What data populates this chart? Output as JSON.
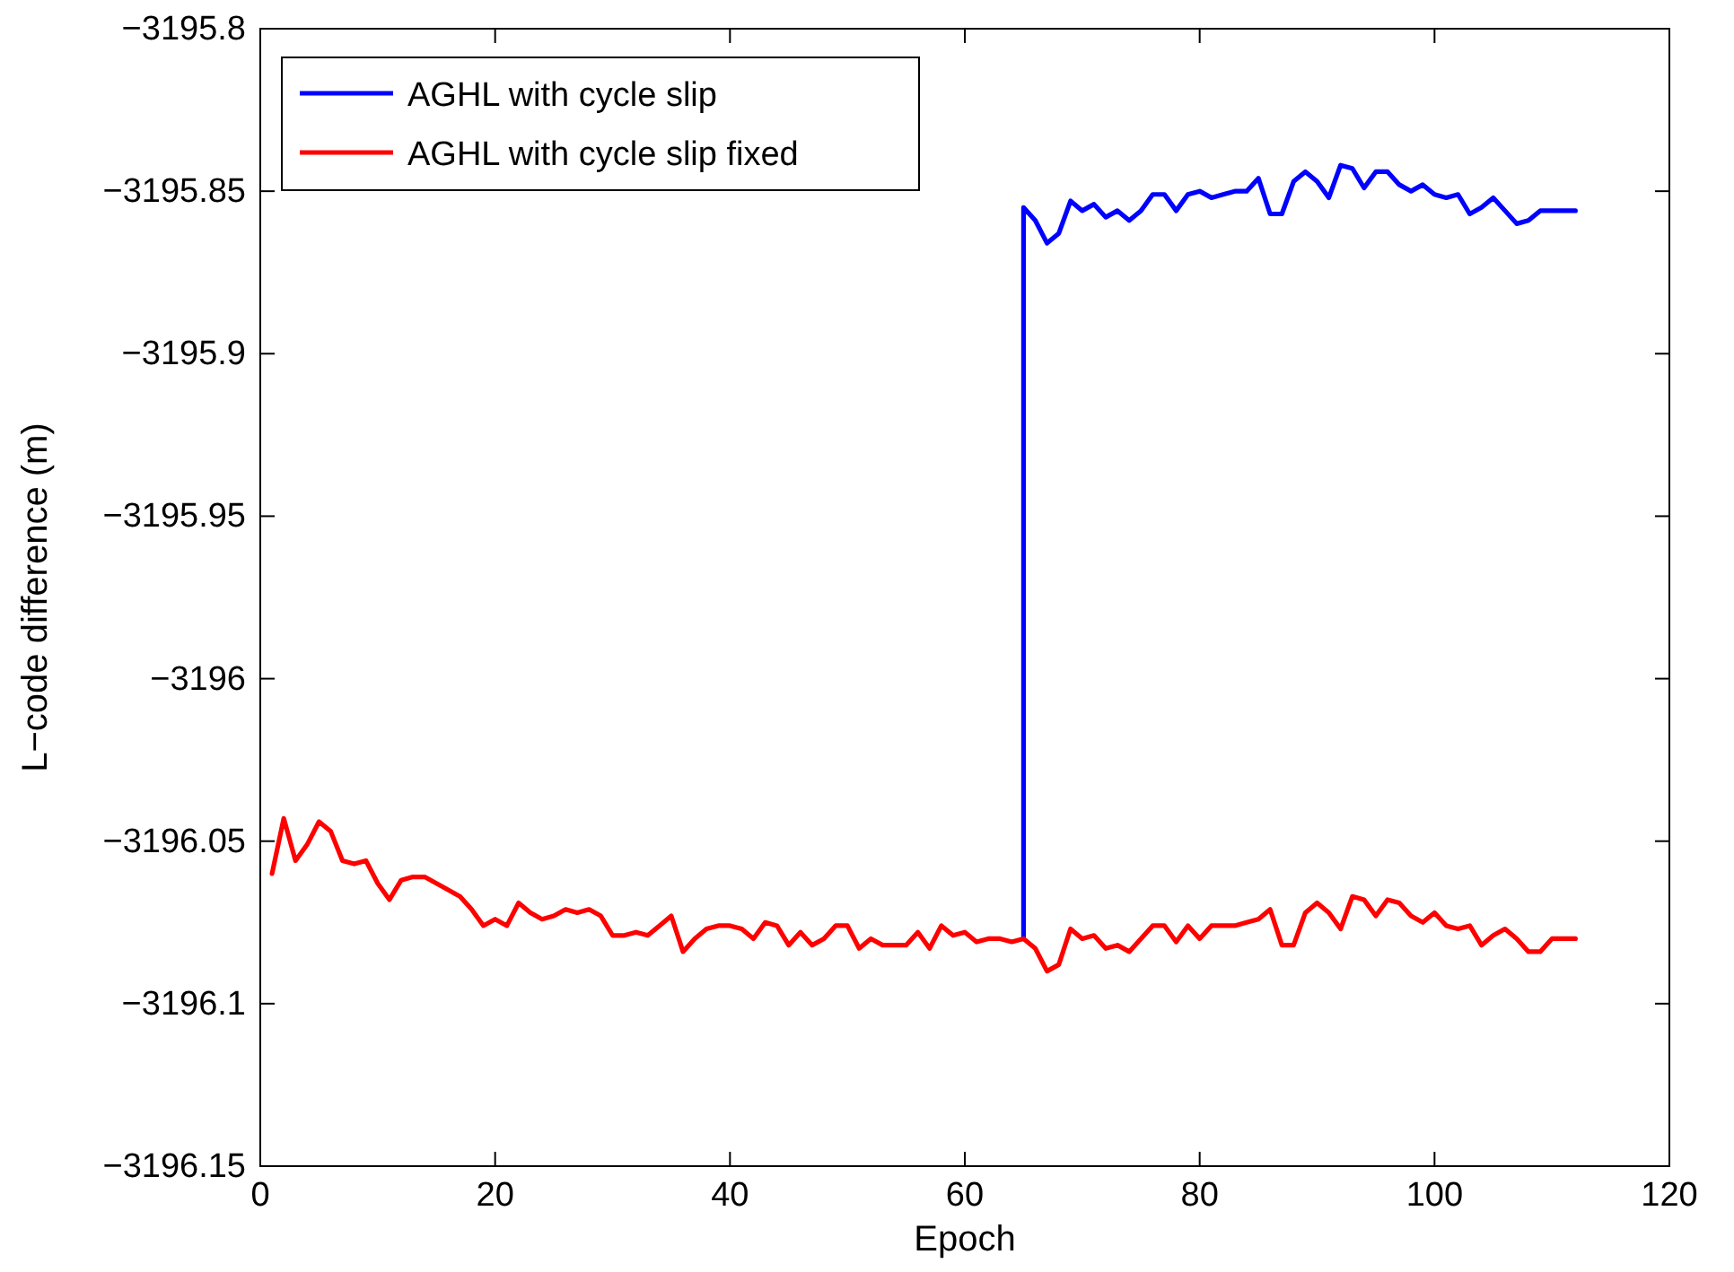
{
  "chart_data": {
    "type": "line",
    "xlabel": "Epoch",
    "ylabel": "L−code difference (m)",
    "legend": "top left",
    "grid": false,
    "xlim": [
      0,
      120
    ],
    "xticks": [
      0,
      20,
      40,
      60,
      80,
      100,
      120
    ],
    "ylim": [
      -3196.15,
      -3195.8
    ],
    "yticks": [
      {
        "value": -3196.15,
        "label": "−3196.15"
      },
      {
        "value": -3196.1,
        "label": "−3196.1"
      },
      {
        "value": -3196.05,
        "label": "−3196.05"
      },
      {
        "value": -3196,
        "label": "−3196"
      },
      {
        "value": -3195.95,
        "label": "−3195.95"
      },
      {
        "value": -3195.9,
        "label": "−3195.9"
      },
      {
        "value": -3195.85,
        "label": "−3195.85"
      },
      {
        "value": -3195.8,
        "label": "−3195.8"
      }
    ],
    "series": [
      {
        "name": "AGHL with cycle slip",
        "color": "#0000ff",
        "x": [
          65,
          65,
          66,
          67,
          68,
          69,
          70,
          71,
          72,
          73,
          74,
          75,
          76,
          77,
          78,
          79,
          80,
          81,
          82,
          83,
          84,
          85,
          86,
          87,
          88,
          89,
          90,
          91,
          92,
          93,
          94,
          95,
          96,
          97,
          98,
          99,
          100,
          101,
          102,
          103,
          104,
          105,
          106,
          107,
          108,
          109,
          110,
          111,
          112
        ],
        "values": [
          -3196.08,
          -3195.855,
          -3195.859,
          -3195.866,
          -3195.863,
          -3195.853,
          -3195.856,
          -3195.854,
          -3195.858,
          -3195.856,
          -3195.859,
          -3195.856,
          -3195.851,
          -3195.851,
          -3195.856,
          -3195.851,
          -3195.85,
          -3195.852,
          -3195.851,
          -3195.85,
          -3195.85,
          -3195.846,
          -3195.857,
          -3195.857,
          -3195.847,
          -3195.844,
          -3195.847,
          -3195.852,
          -3195.842,
          -3195.843,
          -3195.849,
          -3195.844,
          -3195.844,
          -3195.848,
          -3195.85,
          -3195.848,
          -3195.851,
          -3195.852,
          -3195.851,
          -3195.857,
          -3195.855,
          -3195.852,
          -3195.856,
          -3195.86,
          -3195.859,
          -3195.856,
          -3195.856,
          -3195.856,
          -3195.856
        ]
      },
      {
        "name": "AGHL with cycle slip fixed",
        "color": "#ff0000",
        "x": [
          1,
          2,
          3,
          4,
          5,
          6,
          7,
          8,
          9,
          10,
          11,
          12,
          13,
          14,
          15,
          16,
          17,
          18,
          19,
          20,
          21,
          22,
          23,
          24,
          25,
          26,
          27,
          28,
          29,
          30,
          31,
          32,
          33,
          34,
          35,
          36,
          37,
          38,
          39,
          40,
          41,
          42,
          43,
          44,
          45,
          46,
          47,
          48,
          49,
          50,
          51,
          52,
          53,
          54,
          55,
          56,
          57,
          58,
          59,
          60,
          61,
          62,
          63,
          64,
          65,
          66,
          67,
          68,
          69,
          70,
          71,
          72,
          73,
          74,
          75,
          76,
          77,
          78,
          79,
          80,
          81,
          82,
          83,
          84,
          85,
          86,
          87,
          88,
          89,
          90,
          91,
          92,
          93,
          94,
          95,
          96,
          97,
          98,
          99,
          100,
          101,
          102,
          103,
          104,
          105,
          106,
          107,
          108,
          109,
          110,
          111,
          112
        ],
        "values": [
          -3196.06,
          -3196.043,
          -3196.056,
          -3196.051,
          -3196.044,
          -3196.047,
          -3196.056,
          -3196.057,
          -3196.056,
          -3196.063,
          -3196.068,
          -3196.062,
          -3196.061,
          -3196.061,
          -3196.063,
          -3196.065,
          -3196.067,
          -3196.071,
          -3196.076,
          -3196.074,
          -3196.076,
          -3196.069,
          -3196.072,
          -3196.074,
          -3196.073,
          -3196.071,
          -3196.072,
          -3196.071,
          -3196.073,
          -3196.079,
          -3196.079,
          -3196.078,
          -3196.079,
          -3196.076,
          -3196.073,
          -3196.084,
          -3196.08,
          -3196.077,
          -3196.076,
          -3196.076,
          -3196.077,
          -3196.08,
          -3196.075,
          -3196.076,
          -3196.082,
          -3196.078,
          -3196.082,
          -3196.08,
          -3196.076,
          -3196.076,
          -3196.083,
          -3196.08,
          -3196.082,
          -3196.082,
          -3196.082,
          -3196.078,
          -3196.083,
          -3196.076,
          -3196.079,
          -3196.078,
          -3196.081,
          -3196.08,
          -3196.08,
          -3196.081,
          -3196.08,
          -3196.083,
          -3196.09,
          -3196.088,
          -3196.077,
          -3196.08,
          -3196.079,
          -3196.083,
          -3196.082,
          -3196.084,
          -3196.08,
          -3196.076,
          -3196.076,
          -3196.081,
          -3196.076,
          -3196.08,
          -3196.076,
          -3196.076,
          -3196.076,
          -3196.075,
          -3196.074,
          -3196.071,
          -3196.082,
          -3196.082,
          -3196.072,
          -3196.069,
          -3196.072,
          -3196.077,
          -3196.067,
          -3196.068,
          -3196.073,
          -3196.068,
          -3196.069,
          -3196.073,
          -3196.075,
          -3196.072,
          -3196.076,
          -3196.077,
          -3196.076,
          -3196.082,
          -3196.079,
          -3196.077,
          -3196.08,
          -3196.084,
          -3196.084,
          -3196.08,
          -3196.08,
          -3196.08
        ]
      }
    ]
  }
}
